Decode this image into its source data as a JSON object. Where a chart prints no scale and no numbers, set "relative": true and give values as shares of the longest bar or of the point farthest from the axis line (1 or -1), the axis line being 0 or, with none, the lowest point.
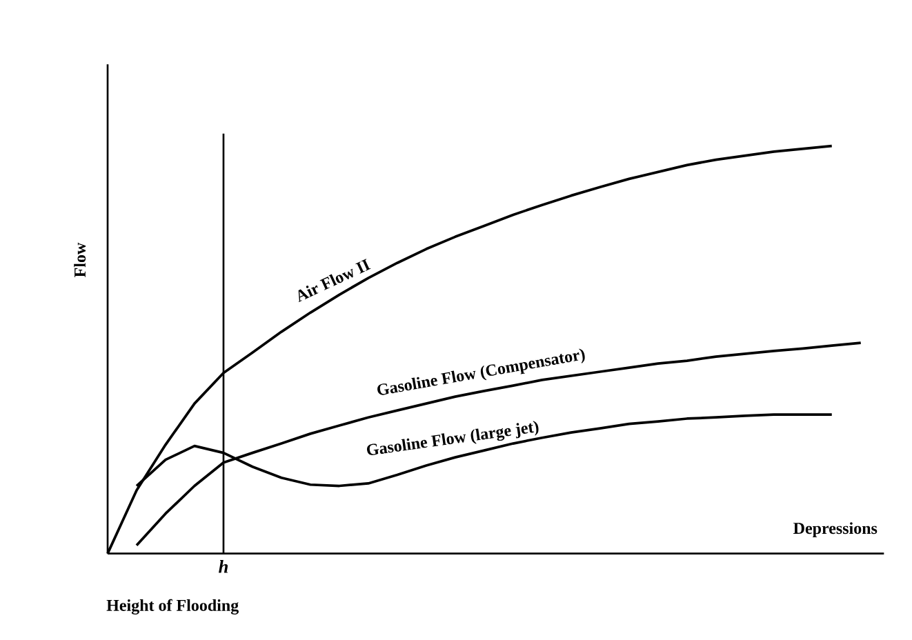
{
  "chart_data": {
    "type": "line",
    "relative": true,
    "xlabel": "Depressions",
    "ylabel": "Flow",
    "legend": false,
    "marker": "none",
    "line_style": "solid",
    "categories": [
      null,
      null,
      null,
      null,
      null,
      null,
      null,
      null,
      null,
      null,
      null,
      null,
      null,
      null,
      null,
      null,
      null,
      null,
      null,
      null,
      null,
      null,
      null,
      null,
      null,
      null,
      null
    ],
    "series": [
      {
        "name": "Air Flow II",
        "color": "#000000",
        "values": [
          0,
          0.155,
          0.267,
          0.368,
          0.443,
          0.493,
          0.544,
          0.591,
          0.635,
          0.676,
          0.713,
          0.747,
          0.777,
          0.804,
          0.831,
          0.855,
          0.878,
          0.899,
          0.919,
          0.936,
          0.953,
          0.966,
          0.976,
          0.986,
          0.993,
          1.0,
          null
        ]
      },
      {
        "name": "Gasoline Flow (Compensator)",
        "color": "#000000",
        "values": [
          null,
          0.02,
          0.098,
          0.166,
          0.223,
          0.247,
          0.27,
          0.294,
          0.314,
          0.334,
          0.351,
          0.368,
          0.385,
          0.399,
          0.412,
          0.426,
          0.436,
          0.446,
          0.456,
          0.466,
          0.473,
          0.483,
          0.49,
          0.497,
          0.503,
          0.51,
          0.517
        ]
      },
      {
        "name": "Gasoline Flow (large jet)",
        "color": "#000000",
        "values": [
          null,
          0.166,
          0.23,
          0.264,
          0.247,
          0.213,
          0.186,
          0.169,
          0.166,
          0.172,
          0.193,
          0.216,
          0.236,
          0.253,
          0.27,
          0.284,
          0.297,
          0.307,
          0.318,
          0.324,
          0.331,
          0.334,
          0.338,
          0.341,
          0.341,
          0.341,
          null
        ]
      }
    ],
    "annotations": [
      "h",
      "Height of Flooding"
    ]
  }
}
